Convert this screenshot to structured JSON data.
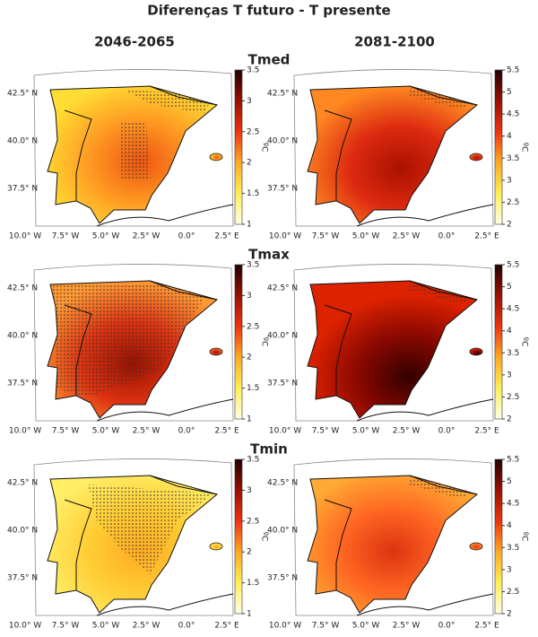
{
  "title": "Diferenças T futuro - T presente",
  "columns": [
    "2046-2065",
    "2081-2100"
  ],
  "rows": [
    "Tmed",
    "Tmax",
    "Tmin"
  ],
  "colorbars": [
    {
      "range": [
        1,
        3.5
      ],
      "ticks": [
        1,
        1.5,
        2,
        2.5,
        3,
        3.5
      ],
      "label": "ºC"
    },
    {
      "range": [
        2,
        5.5
      ],
      "ticks": [
        2,
        2.5,
        3,
        3.5,
        4,
        4.5,
        5,
        5.5
      ],
      "label": "ºC"
    }
  ],
  "lat_labels": [
    "42.5° N",
    "40.0° N",
    "37.5° N"
  ],
  "lon_labels": [
    "10.0° W",
    "7.5° W",
    "5.0° W",
    "2.5° W",
    "0.0°",
    "2.5° E"
  ]
}
